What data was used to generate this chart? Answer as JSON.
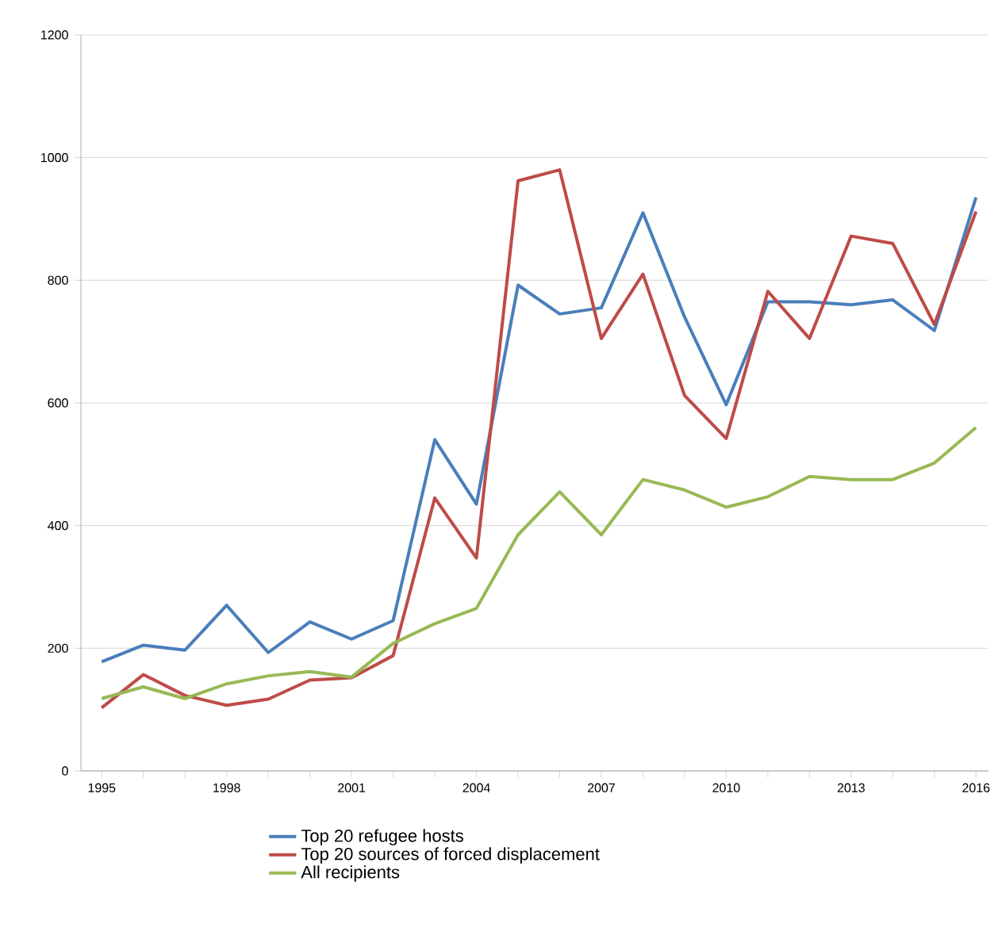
{
  "chart_data": {
    "type": "line",
    "x": [
      1995,
      1996,
      1997,
      1998,
      1999,
      2000,
      2001,
      2002,
      2003,
      2004,
      2005,
      2006,
      2007,
      2008,
      2009,
      2010,
      2011,
      2012,
      2013,
      2014,
      2015,
      2016
    ],
    "series": [
      {
        "name": "Top 20 refugee hosts",
        "color": "#4a7ebb",
        "values": [
          178,
          205,
          197,
          270,
          193,
          243,
          215,
          245,
          540,
          435,
          792,
          745,
          755,
          910,
          740,
          597,
          765,
          765,
          760,
          768,
          718,
          935
        ]
      },
      {
        "name": "Top 20 sources of forced displacement",
        "color": "#be4b48",
        "values": [
          103,
          157,
          123,
          107,
          117,
          148,
          152,
          188,
          445,
          347,
          962,
          980,
          705,
          810,
          612,
          542,
          782,
          705,
          872,
          860,
          728,
          912
        ]
      },
      {
        "name": "All recipients",
        "color": "#98b954",
        "values": [
          118,
          137,
          118,
          142,
          155,
          162,
          153,
          208,
          240,
          265,
          385,
          455,
          385,
          475,
          458,
          430,
          447,
          480,
          475,
          475,
          502,
          560
        ]
      }
    ],
    "xlim": [
      1994.5,
      2016.3
    ],
    "xticks": [
      1995,
      {
        "value": 1996,
        "label": null
      },
      {
        "value": 1997,
        "label": null
      },
      1998,
      {
        "value": 1999,
        "label": null
      },
      {
        "value": 2000,
        "label": null
      },
      2001,
      {
        "value": 2002,
        "label": null
      },
      {
        "value": 2003,
        "label": null
      },
      2004,
      {
        "value": 2005,
        "label": null
      },
      {
        "value": 2006,
        "label": null
      },
      2007,
      {
        "value": 2008,
        "label": null
      },
      {
        "value": 2009,
        "label": null
      },
      2010,
      {
        "value": 2011,
        "label": null
      },
      {
        "value": 2012,
        "label": null
      },
      2013,
      {
        "value": 2014,
        "label": null
      },
      {
        "value": 2015,
        "label": null
      },
      2016
    ],
    "ylim": [
      0,
      1200
    ],
    "yticks": [
      0,
      200,
      400,
      600,
      800,
      1000,
      1200
    ],
    "grid": "y",
    "legend": "bottom",
    "marker": "none",
    "line_style": "solid"
  }
}
